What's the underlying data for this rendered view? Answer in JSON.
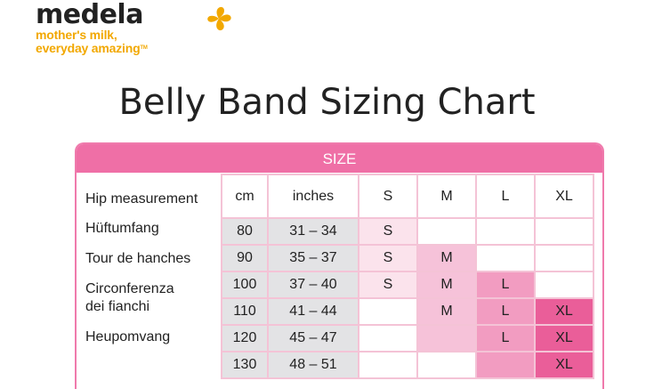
{
  "logo": {
    "brand": "medela",
    "tagline_1": "mother's milk,",
    "tagline_2": "everyday amazing",
    "tagline_mark": "TM",
    "accent_color": "#f2a800"
  },
  "title": "Belly Band Sizing Chart",
  "table": {
    "size_header": "SIZE",
    "row_labels": [
      "Hip measurement",
      "Hüftumfang",
      "Tour de hanches",
      "Circonferenza",
      "dei fianchi",
      "Heupomvang"
    ],
    "column_headers": [
      "cm",
      "inches",
      "S",
      "M",
      "L",
      "XL"
    ],
    "rows": [
      {
        "cm": "80",
        "inches": "31 – 34",
        "s": "S",
        "m": "",
        "l": "",
        "xl": ""
      },
      {
        "cm": "90",
        "inches": "35 – 37",
        "s": "S",
        "m": "M",
        "l": "",
        "xl": ""
      },
      {
        "cm": "100",
        "inches": "37 – 40",
        "s": "S",
        "m": "M",
        "l": "L",
        "xl": ""
      },
      {
        "cm": "110",
        "inches": "41 – 44",
        "s": "",
        "m": "M",
        "l": "L",
        "xl": "XL"
      },
      {
        "cm": "120",
        "inches": "45 – 47",
        "s": "",
        "m": "",
        "l": "L",
        "xl": "XL"
      },
      {
        "cm": "130",
        "inches": "48 – 51",
        "s": "",
        "m": "",
        "l": "",
        "xl": "XL"
      }
    ],
    "colors": {
      "header_bar": "#ef6fa6",
      "gray_cell": "#e3e3e5",
      "size_s": "#fbe3ec",
      "size_m": "#f6c2d9",
      "size_l": "#f29cc1",
      "size_xl": "#ea5e99"
    }
  }
}
